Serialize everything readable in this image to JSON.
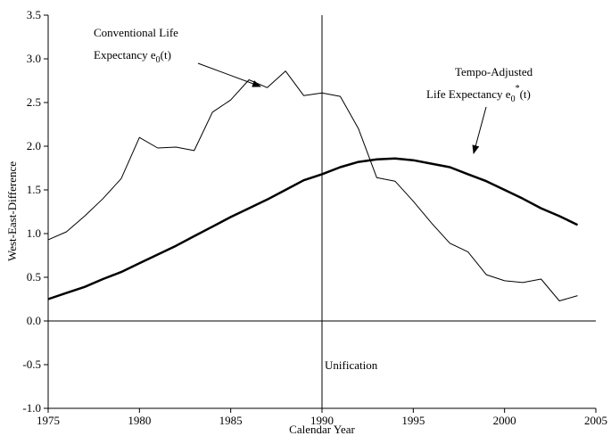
{
  "chart_data": {
    "type": "line",
    "x_label": "Calendar Year",
    "y_label": "West-East-Difference",
    "x": [
      1975,
      1976,
      1977,
      1978,
      1979,
      1980,
      1981,
      1982,
      1983,
      1984,
      1985,
      1986,
      1987,
      1988,
      1989,
      1990,
      1991,
      1992,
      1993,
      1994,
      1995,
      1996,
      1997,
      1998,
      1999,
      2000,
      2001,
      2002,
      2003,
      2004
    ],
    "series": [
      {
        "color": "#000000",
        "width": 1,
        "values": [
          0.93,
          1.02,
          1.2,
          1.4,
          1.63,
          2.1,
          1.98,
          1.99,
          1.95,
          2.39,
          2.53,
          2.76,
          2.67,
          2.86,
          2.58,
          2.61,
          2.57,
          2.2,
          1.64,
          1.6,
          1.37,
          1.12,
          0.89,
          0.79,
          0.53,
          0.46,
          0.44,
          0.48,
          0.23,
          0.29
        ]
      },
      {
        "color": "#000000",
        "width": 2.5,
        "values": [
          0.25,
          0.32,
          0.39,
          0.48,
          0.56,
          0.66,
          0.76,
          0.86,
          0.97,
          1.08,
          1.19,
          1.29,
          1.39,
          1.5,
          1.61,
          1.68,
          1.76,
          1.82,
          1.85,
          1.86,
          1.84,
          1.8,
          1.76,
          1.68,
          1.6,
          1.5,
          1.4,
          1.29,
          1.2,
          1.1
        ]
      }
    ],
    "annotations": {
      "conventional": [
        "Conventional Life",
        "Expectancy e",
        "0",
        "(t)"
      ],
      "tempo": [
        "Tempo-Adjusted",
        "Life Expectancy e",
        "0",
        "*",
        "(t)"
      ],
      "unification": {
        "x": 1990,
        "label": "Unification"
      }
    },
    "xlim": [
      1975,
      2005
    ],
    "xticks": [
      1975,
      1980,
      1985,
      1990,
      1995,
      2000,
      2005
    ],
    "ylim": [
      -1,
      3.5
    ],
    "yticks": [
      {
        "value": -1,
        "label": "-1.0"
      },
      -0.5,
      {
        "value": 0,
        "label": "0.0"
      },
      0.5,
      {
        "value": 1,
        "label": "1.0"
      },
      1.5,
      {
        "value": 2,
        "label": "2.0"
      },
      2.5,
      {
        "value": 3,
        "label": "3.0"
      },
      3.5
    ],
    "grid": false
  }
}
